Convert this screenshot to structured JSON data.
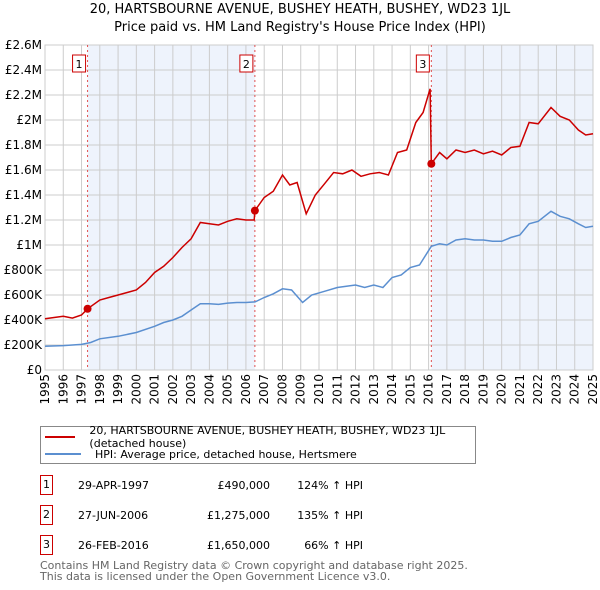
{
  "title": "20, HARTSBOURNE AVENUE, BUSHEY HEATH, BUSHEY, WD23 1JL",
  "subtitle": "Price paid vs. HM Land Registry's House Price Index (HPI)",
  "colors": {
    "property": "#cc0000",
    "hpi": "#5b8fd0",
    "shade": "#eef3fc",
    "grid": "#cccccc"
  },
  "chart_data": {
    "type": "line",
    "xlim": [
      1995,
      2025
    ],
    "ylim": [
      0,
      2600000
    ],
    "x_ticks": [
      "1995",
      "1996",
      "1997",
      "1998",
      "1999",
      "2000",
      "2001",
      "2002",
      "2003",
      "2004",
      "2005",
      "2006",
      "2007",
      "2008",
      "2009",
      "2010",
      "2011",
      "2012",
      "2013",
      "2014",
      "2015",
      "2016",
      "2017",
      "2018",
      "2019",
      "2020",
      "2021",
      "2022",
      "2023",
      "2024",
      "2025"
    ],
    "y_ticks": [
      {
        "value": 0,
        "label": "£0"
      },
      {
        "value": 200000,
        "label": "£200K"
      },
      {
        "value": 400000,
        "label": "£400K"
      },
      {
        "value": 600000,
        "label": "£600K"
      },
      {
        "value": 800000,
        "label": "£800K"
      },
      {
        "value": 1000000,
        "label": "£1M"
      },
      {
        "value": 1200000,
        "label": "£1.2M"
      },
      {
        "value": 1400000,
        "label": "£1.4M"
      },
      {
        "value": 1600000,
        "label": "£1.6M"
      },
      {
        "value": 1800000,
        "label": "£1.8M"
      },
      {
        "value": 2000000,
        "label": "£2M"
      },
      {
        "value": 2200000,
        "label": "£2.2M"
      },
      {
        "value": 2400000,
        "label": "£2.4M"
      },
      {
        "value": 2600000,
        "label": "£2.6M"
      }
    ],
    "grid": true,
    "series": [
      {
        "name": "20, HARTSBOURNE AVENUE, BUSHEY HEATH, BUSHEY, WD23 1JL (detached house)",
        "points": [
          [
            1995,
            410000
          ],
          [
            1995.5,
            420000
          ],
          [
            1996,
            430000
          ],
          [
            1996.5,
            415000
          ],
          [
            1997,
            440000
          ],
          [
            1997.33,
            490000
          ],
          [
            1998,
            560000
          ],
          [
            1998.5,
            580000
          ],
          [
            1999,
            600000
          ],
          [
            1999.5,
            620000
          ],
          [
            2000,
            640000
          ],
          [
            2000.5,
            700000
          ],
          [
            2001,
            780000
          ],
          [
            2001.5,
            830000
          ],
          [
            2002,
            900000
          ],
          [
            2002.5,
            980000
          ],
          [
            2003,
            1050000
          ],
          [
            2003.5,
            1180000
          ],
          [
            2004,
            1170000
          ],
          [
            2004.5,
            1160000
          ],
          [
            2005,
            1190000
          ],
          [
            2005.5,
            1210000
          ],
          [
            2006,
            1200000
          ],
          [
            2006.45,
            1200000
          ],
          [
            2006.49,
            1275000
          ],
          [
            2007,
            1380000
          ],
          [
            2007.5,
            1430000
          ],
          [
            2008,
            1560000
          ],
          [
            2008.4,
            1480000
          ],
          [
            2008.8,
            1500000
          ],
          [
            2009.3,
            1250000
          ],
          [
            2009.8,
            1400000
          ],
          [
            2010.3,
            1490000
          ],
          [
            2010.8,
            1580000
          ],
          [
            2011.3,
            1570000
          ],
          [
            2011.8,
            1600000
          ],
          [
            2012.3,
            1550000
          ],
          [
            2012.8,
            1570000
          ],
          [
            2013.3,
            1580000
          ],
          [
            2013.8,
            1560000
          ],
          [
            2014.3,
            1740000
          ],
          [
            2014.8,
            1760000
          ],
          [
            2015.3,
            1980000
          ],
          [
            2015.7,
            2060000
          ],
          [
            2016.08,
            2250000
          ],
          [
            2016.15,
            1650000
          ],
          [
            2016.6,
            1740000
          ],
          [
            2017,
            1690000
          ],
          [
            2017.5,
            1760000
          ],
          [
            2018,
            1740000
          ],
          [
            2018.5,
            1760000
          ],
          [
            2019,
            1730000
          ],
          [
            2019.5,
            1750000
          ],
          [
            2020,
            1720000
          ],
          [
            2020.5,
            1780000
          ],
          [
            2021,
            1790000
          ],
          [
            2021.5,
            1980000
          ],
          [
            2022,
            1970000
          ],
          [
            2022.7,
            2100000
          ],
          [
            2023.2,
            2030000
          ],
          [
            2023.7,
            2000000
          ],
          [
            2024.2,
            1920000
          ],
          [
            2024.6,
            1880000
          ],
          [
            2025,
            1890000
          ]
        ]
      },
      {
        "name": "HPI: Average price, detached house, Hertsmere",
        "points": [
          [
            1995,
            190000
          ],
          [
            1996,
            195000
          ],
          [
            1997,
            205000
          ],
          [
            1997.5,
            220000
          ],
          [
            1998,
            250000
          ],
          [
            1999,
            270000
          ],
          [
            2000,
            300000
          ],
          [
            2001,
            350000
          ],
          [
            2001.5,
            380000
          ],
          [
            2002,
            400000
          ],
          [
            2002.5,
            430000
          ],
          [
            2003,
            480000
          ],
          [
            2003.5,
            530000
          ],
          [
            2004,
            530000
          ],
          [
            2004.5,
            525000
          ],
          [
            2005,
            535000
          ],
          [
            2005.5,
            540000
          ],
          [
            2006,
            540000
          ],
          [
            2006.5,
            545000
          ],
          [
            2007,
            580000
          ],
          [
            2007.5,
            610000
          ],
          [
            2008,
            650000
          ],
          [
            2008.5,
            640000
          ],
          [
            2009.1,
            540000
          ],
          [
            2009.6,
            600000
          ],
          [
            2010.3,
            630000
          ],
          [
            2011,
            660000
          ],
          [
            2011.5,
            670000
          ],
          [
            2012,
            680000
          ],
          [
            2012.5,
            660000
          ],
          [
            2013,
            680000
          ],
          [
            2013.5,
            660000
          ],
          [
            2014,
            740000
          ],
          [
            2014.5,
            760000
          ],
          [
            2015,
            820000
          ],
          [
            2015.5,
            840000
          ],
          [
            2016.15,
            990000
          ],
          [
            2016.6,
            1010000
          ],
          [
            2017,
            1000000
          ],
          [
            2017.5,
            1040000
          ],
          [
            2018,
            1050000
          ],
          [
            2018.5,
            1040000
          ],
          [
            2019,
            1040000
          ],
          [
            2019.5,
            1030000
          ],
          [
            2020,
            1030000
          ],
          [
            2020.5,
            1060000
          ],
          [
            2021,
            1080000
          ],
          [
            2021.5,
            1170000
          ],
          [
            2022,
            1190000
          ],
          [
            2022.7,
            1270000
          ],
          [
            2023.2,
            1230000
          ],
          [
            2023.7,
            1210000
          ],
          [
            2024.2,
            1170000
          ],
          [
            2024.6,
            1140000
          ],
          [
            2025,
            1150000
          ]
        ]
      }
    ],
    "sales": [
      {
        "n": "1",
        "x": 1997.33,
        "y": 490000
      },
      {
        "n": "2",
        "x": 2006.49,
        "y": 1275000
      },
      {
        "n": "3",
        "x": 2016.15,
        "y": 1650000
      }
    ]
  },
  "legend": {
    "property": "20, HARTSBOURNE AVENUE, BUSHEY HEATH, BUSHEY, WD23 1JL (detached house)",
    "hpi": "HPI: Average price, detached house, Hertsmere"
  },
  "transactions": [
    {
      "n": "1",
      "date": "29-APR-1997",
      "price": "£490,000",
      "hpi": "124% ↑ HPI"
    },
    {
      "n": "2",
      "date": "27-JUN-2006",
      "price": "£1,275,000",
      "hpi": "135% ↑ HPI"
    },
    {
      "n": "3",
      "date": "26-FEB-2016",
      "price": "£1,650,000",
      "hpi": "66% ↑ HPI"
    }
  ],
  "footer": {
    "line1": "Contains HM Land Registry data © Crown copyright and database right 2025.",
    "line2": "This data is licensed under the Open Government Licence v3.0."
  }
}
